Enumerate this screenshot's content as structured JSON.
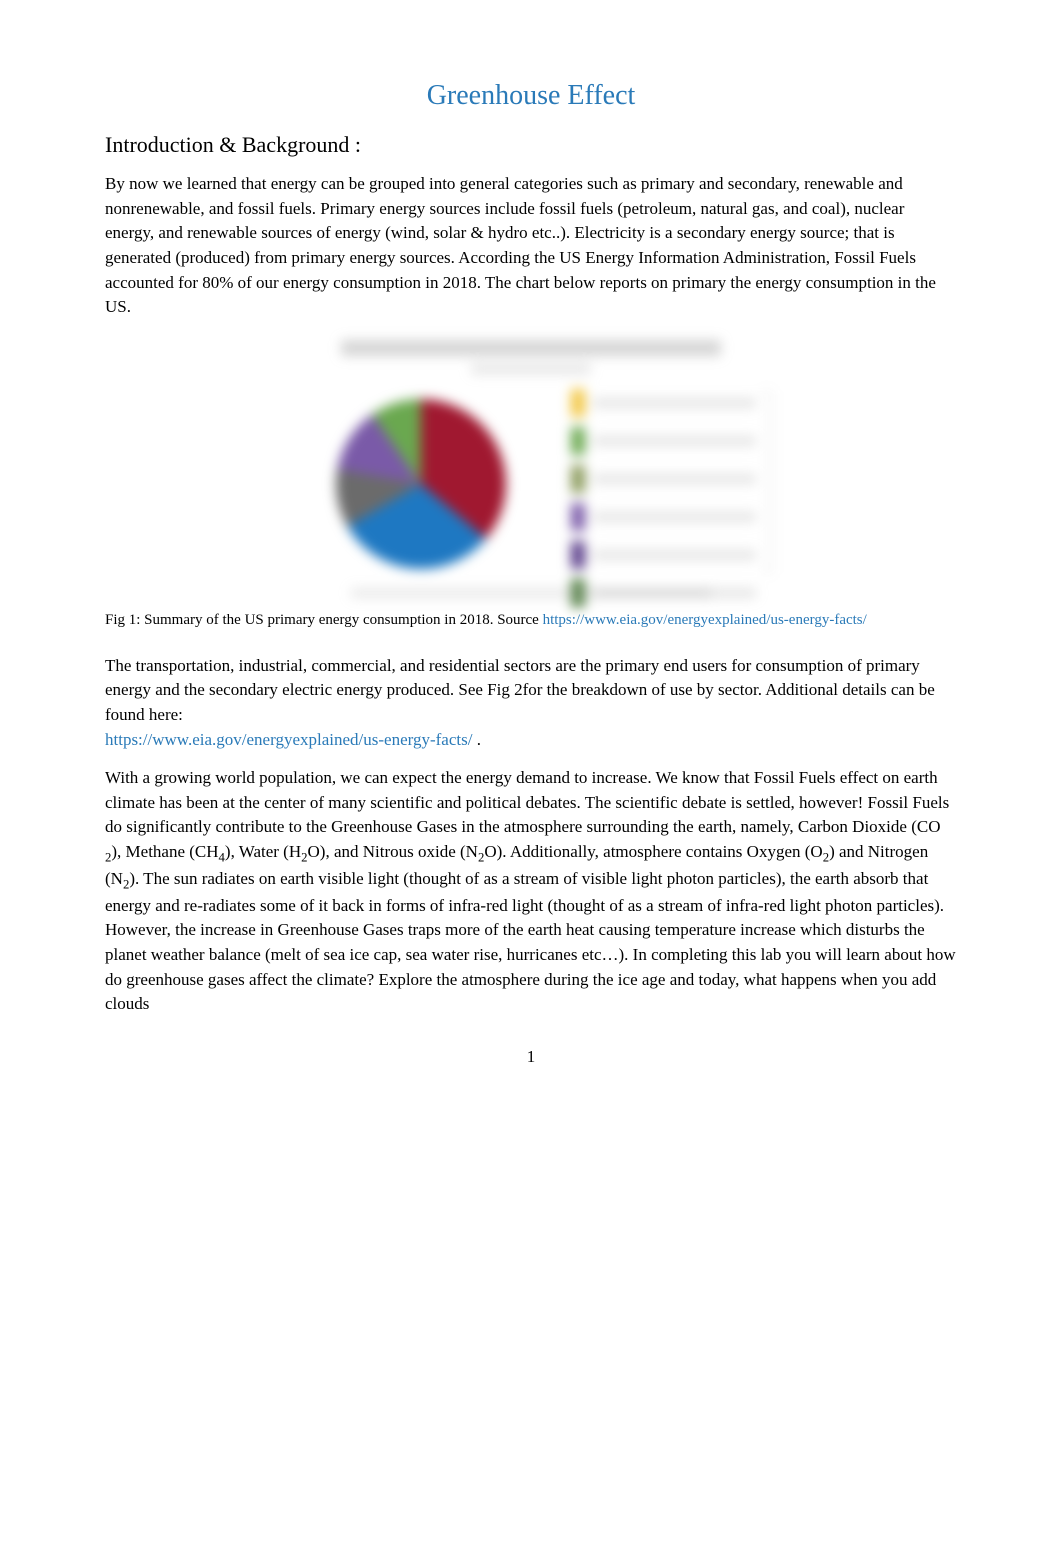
{
  "title": "Greenhouse Effect",
  "heading": "Introduction & Background  :",
  "para1": "By now we learned that energy can be grouped into general categories such as primary and secondary, renewable and nonrenewable, and fossil fuels. Primary energy sources include fossil fuels (petroleum, natural gas, and coal), nuclear energy, and renewable sources of energy (wind, solar & hydro etc..). Electricity is a secondary energy source; that is generated (produced) from primary energy sources. According the US Energy Information Administration, Fossil Fuels accounted for 80% of our energy consumption in 2018. The chart below reports on primary the energy consumption in the US.",
  "figure": {
    "type": "pie",
    "blurred": true,
    "slice_colors": {
      "petroleum": "#a01830",
      "natural_gas": "#1e78c2",
      "coal": "#6b6b6b",
      "nuclear": "#7a5aa8",
      "renewable": "#6aa84f"
    },
    "legend_item_colors": [
      "#f2c744",
      "#6aa84f",
      "#6aa84f",
      "#8a9a5b",
      "#7a5aa8",
      "#5a3d8a",
      "#4a7a3a"
    ],
    "background_color": "#ffffff"
  },
  "caption": {
    "prefix": "Fig 1: Summary of the US primary energy consumption in 2018. Source ",
    "link_text": "https://www.eia.gov/energyexplained/us-energy-facts/"
  },
  "para2": {
    "text": "The transportation, industrial, commercial, and residential sectors are the primary end users for consumption of primary energy and the secondary electric energy produced. See   Fig 2for the breakdown of use by sector. Additional details can be found here: ",
    "link": "https://www.eia.gov/energyexplained/us-energy-facts/",
    "suffix": "   ."
  },
  "para3": {
    "p1": "With a growing world population, we can expect the energy demand to increase. We know that Fossil Fuels effect on earth climate has been at the center of many scientific and political debates. The scientific debate is settled, however! Fossil Fuels do significantly contribute to the Greenhouse Gases in the atmosphere surrounding the earth, namely, Carbon Dioxide (CO ",
    "s1": "2",
    "p2": "), Methane (CH",
    "s2": "4",
    "p3": "), Water (H",
    "s3": "2",
    "p4": "O), and Nitrous oxide (N",
    "s4": "2",
    "p5": "O). Additionally, atmosphere contains Oxygen (O",
    "s5": "2",
    "p6": ") and Nitrogen (N",
    "s6": "2",
    "p7": "). The sun radiates on earth visible light (thought of as a stream of visible light photon particles), the earth absorb that energy and re-radiates some of it back in forms of infra-red light (thought of as a stream of infra-red light photon particles). However, the increase in Greenhouse Gases traps more of the earth heat causing temperature increase which disturbs the planet weather balance (melt of sea ice cap, sea water rise, hurricanes etc…). In completing this lab you will learn about how do greenhouse gases affect the climate? Explore the atmosphere during the ice age and today, what happens when you add clouds"
  },
  "page_number": "1",
  "colors": {
    "title_color": "#2a7ab8",
    "link_color": "#2a7ab8",
    "text_color": "#000000",
    "background": "#ffffff"
  }
}
